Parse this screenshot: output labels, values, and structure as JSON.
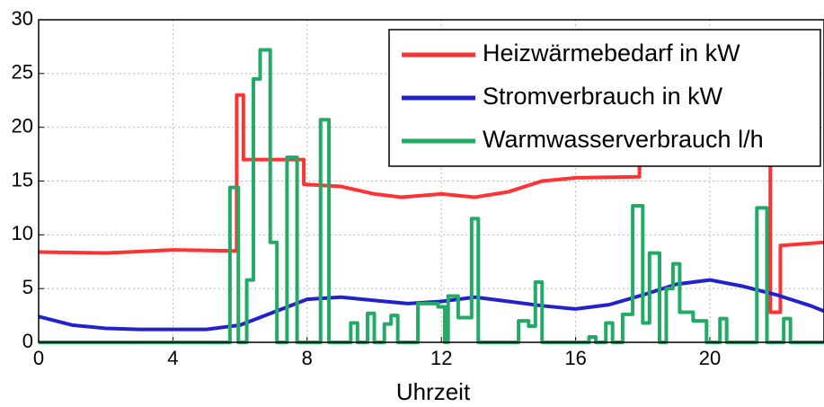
{
  "chart_data": {
    "type": "line",
    "x_label": "Uhrzeit",
    "xlim": [
      0,
      23.4
    ],
    "xticks": [
      0,
      4,
      8,
      12,
      16,
      20
    ],
    "ylim": [
      0,
      30
    ],
    "yticks": [
      0,
      5,
      10,
      15,
      20,
      25,
      30
    ],
    "grid": true,
    "legend": "upper right",
    "series": [
      {
        "name": "Heizwärmebedarf in kW",
        "color": "#ff3333",
        "x": [
          0,
          2,
          4,
          5.9,
          5.9,
          6.1,
          6.1,
          7.9,
          7.9,
          9,
          10,
          10.8,
          12,
          13,
          14,
          15,
          16,
          17.9,
          17.9,
          20,
          21.8,
          21.8,
          22.1,
          22.1,
          23.4
        ],
        "values": [
          8.4,
          8.3,
          8.6,
          8.5,
          23,
          23,
          17,
          17,
          14.7,
          14.5,
          13.8,
          13.5,
          13.8,
          13.5,
          14,
          15,
          15.3,
          15.4,
          17.6,
          17.5,
          17.4,
          2.8,
          2.8,
          9,
          9.3
        ]
      },
      {
        "name": "Stromverbrauch in kW",
        "color": "#2222cc",
        "x": [
          0,
          1,
          2,
          3,
          4,
          5,
          6,
          7,
          8,
          9,
          10,
          11,
          12,
          13,
          14,
          15,
          16,
          17,
          18,
          19,
          20,
          21,
          22,
          23,
          23.4
        ],
        "values": [
          2.4,
          1.6,
          1.3,
          1.2,
          1.2,
          1.2,
          1.6,
          2.8,
          4,
          4.2,
          3.9,
          3.6,
          3.8,
          4.2,
          3.8,
          3.4,
          3.1,
          3.5,
          4.4,
          5.4,
          5.8,
          5.2,
          4.4,
          3.4,
          2.9
        ]
      },
      {
        "name": "Warmwasserverbrauch l/h",
        "color": "#22aa66",
        "x": [
          0,
          5.7,
          5.7,
          5.95,
          5.95,
          6.2,
          6.2,
          6.4,
          6.4,
          6.6,
          6.6,
          6.9,
          6.9,
          7.1,
          7.1,
          7.4,
          7.4,
          7.7,
          7.7,
          8.4,
          8.4,
          8.65,
          8.65,
          9.3,
          9.3,
          9.5,
          9.5,
          9.8,
          9.8,
          10,
          10,
          10.3,
          10.3,
          10.5,
          10.5,
          10.7,
          10.7,
          11.3,
          11.3,
          11.9,
          11.9,
          12.1,
          12.1,
          12.2,
          12.2,
          12.5,
          12.5,
          12.9,
          12.9,
          13.1,
          13.1,
          14.3,
          14.3,
          14.6,
          14.6,
          14.8,
          14.8,
          15,
          15,
          16.4,
          16.4,
          16.6,
          16.6,
          16.9,
          16.9,
          17.1,
          17.1,
          17.4,
          17.4,
          17.7,
          17.7,
          18,
          18,
          18.2,
          18.2,
          18.5,
          18.5,
          18.7,
          18.7,
          18.9,
          18.9,
          19.1,
          19.1,
          19.5,
          19.5,
          19.9,
          19.9,
          20.3,
          20.3,
          20.5,
          20.5,
          21.4,
          21.4,
          21.7,
          21.7,
          22.2,
          22.2,
          22.4,
          22.4,
          23.4
        ],
        "values": [
          0,
          0,
          14.4,
          14.4,
          0,
          0,
          5.8,
          5.8,
          24.5,
          24.5,
          27.2,
          27.2,
          9.3,
          9.3,
          0,
          0,
          17.2,
          17.2,
          0,
          0,
          20.7,
          20.7,
          0,
          0,
          1.8,
          1.8,
          0,
          0,
          2.7,
          2.7,
          0,
          0,
          1.7,
          1.7,
          2.5,
          2.5,
          0,
          0,
          3.6,
          3.6,
          3.3,
          3.3,
          0,
          0,
          4.3,
          4.3,
          2.3,
          2.3,
          11.5,
          11.5,
          0,
          0,
          2,
          2,
          1.5,
          1.5,
          5.6,
          5.6,
          0,
          0,
          0.5,
          0.5,
          0,
          0,
          1.8,
          1.8,
          0,
          0,
          2.6,
          2.6,
          12.7,
          12.7,
          1.8,
          1.8,
          8.3,
          8.3,
          0,
          0,
          5,
          5,
          7.3,
          7.3,
          2.8,
          2.8,
          2,
          2,
          0,
          0,
          2.2,
          2.2,
          0,
          0,
          12.5,
          12.5,
          0,
          0,
          2.2,
          2.2,
          0,
          0
        ]
      }
    ]
  }
}
